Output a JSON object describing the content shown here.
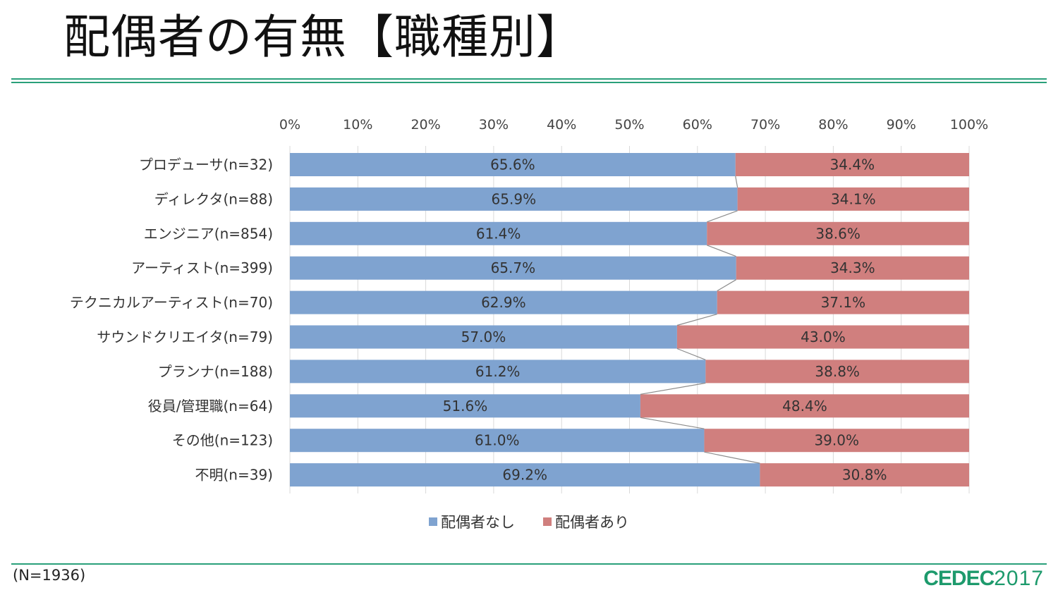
{
  "title": "配偶者の有無【職種別】",
  "footnote": "(N=1936)",
  "logo": {
    "bold": "CEDEC",
    "year": "2017"
  },
  "colors": {
    "none": "#7fa3d0",
    "has": "#d07f7e",
    "accent": "#2aa07a",
    "grid": "#d9d9d9",
    "connector": "#8c8c8c"
  },
  "chart_data": {
    "type": "bar",
    "stacked": "percent",
    "orientation": "horizontal",
    "title": "配偶者の有無【職種別】",
    "x_ticks": [
      "0%",
      "10%",
      "20%",
      "30%",
      "40%",
      "50%",
      "60%",
      "70%",
      "80%",
      "90%",
      "100%"
    ],
    "xlim": [
      0,
      100
    ],
    "categories": [
      "プロデューサ(n=32)",
      "ディレクタ(n=88)",
      "エンジニア(n=854)",
      "アーティスト(n=399)",
      "テクニカルアーティスト(n=70)",
      "サウンドクリエイタ(n=79)",
      "プランナ(n=188)",
      "役員/管理職(n=64)",
      "その他(n=123)",
      "不明(n=39)"
    ],
    "series": [
      {
        "name": "配偶者なし",
        "values": [
          65.6,
          65.9,
          61.4,
          65.7,
          62.9,
          57.0,
          61.2,
          51.6,
          61.0,
          69.2
        ],
        "labels": [
          "65.6%",
          "65.9%",
          "61.4%",
          "65.7%",
          "62.9%",
          "57.0%",
          "61.2%",
          "51.6%",
          "61.0%",
          "69.2%"
        ]
      },
      {
        "name": "配偶者あり",
        "values": [
          34.4,
          34.1,
          38.6,
          34.3,
          37.1,
          43.0,
          38.8,
          48.4,
          39.0,
          30.8
        ],
        "labels": [
          "34.4%",
          "34.1%",
          "38.6%",
          "34.3%",
          "37.1%",
          "43.0%",
          "38.8%",
          "48.4%",
          "39.0%",
          "30.8%"
        ]
      }
    ],
    "series_lines": true,
    "legend": "bottom"
  }
}
